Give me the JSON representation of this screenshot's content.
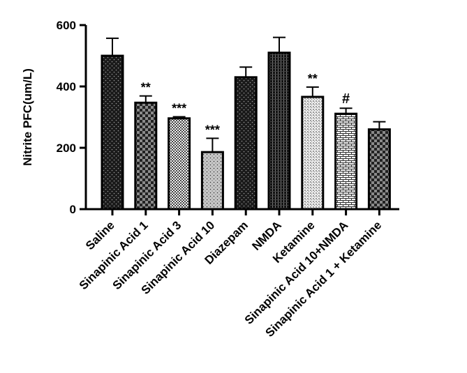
{
  "chart_data": {
    "type": "bar",
    "title": "",
    "xlabel": "",
    "ylabel": "Nitrite PFC(um/L)",
    "ylim": [
      0,
      600
    ],
    "yticks": [
      0,
      200,
      400,
      600
    ],
    "grid": false,
    "legend": "none",
    "categories": [
      "Saline",
      "Sinapinic Acid 1",
      "Sinapinic Acid 3",
      "Sinapinic Acid 10",
      "Diazepam",
      "NMDA",
      "Ketamine",
      "Sinapinic Acid 10+NMDA",
      "Sinapinic Acid 1 + Ketamine"
    ],
    "values": [
      500,
      347,
      296,
      186,
      430,
      510,
      366,
      311,
      260
    ],
    "errors": [
      57,
      22,
      5,
      45,
      33,
      50,
      32,
      18,
      25
    ],
    "annotations": [
      "",
      "**",
      "***",
      "***",
      "",
      "",
      "**",
      "#",
      ""
    ],
    "patterns": [
      "dots-dark",
      "checker",
      "fine-checker",
      "dots-light",
      "dots-dark",
      "vertical-stripes",
      "light-grid",
      "bricks",
      "checker"
    ]
  }
}
